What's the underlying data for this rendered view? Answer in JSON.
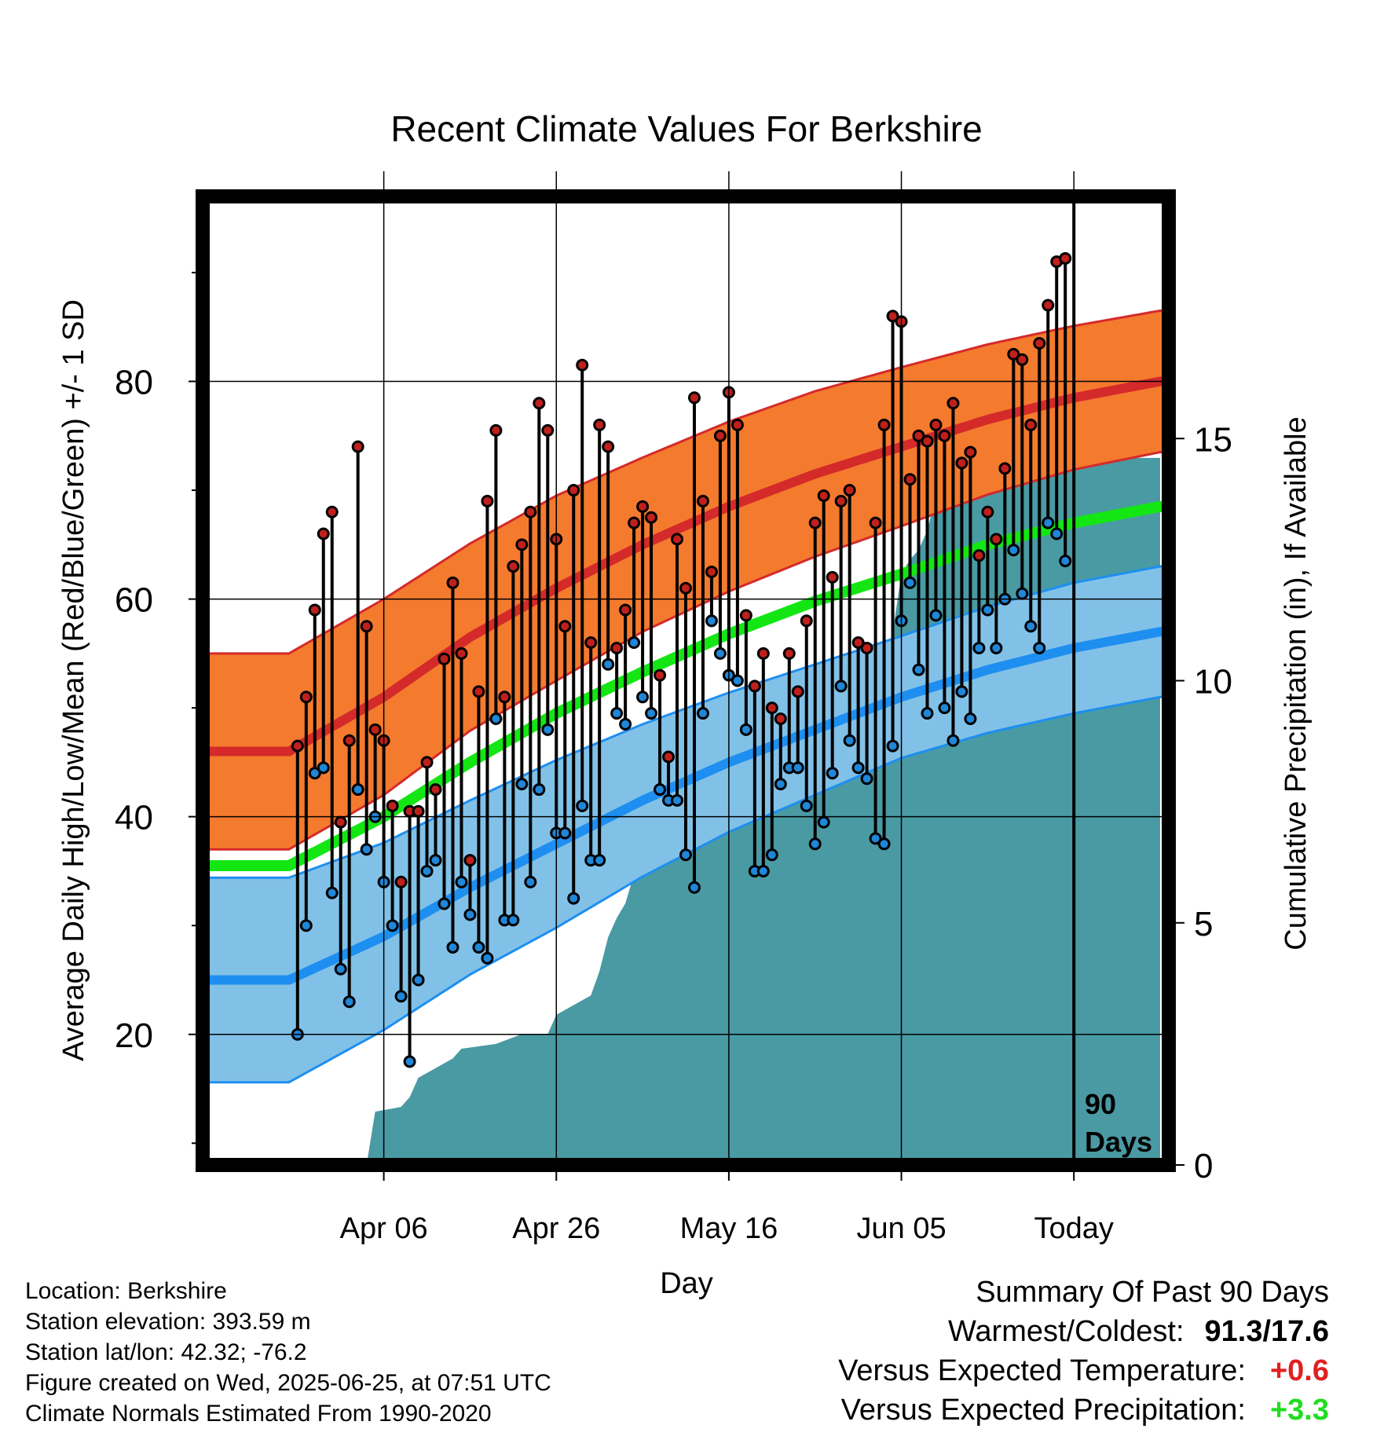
{
  "chart_data": {
    "type": "line",
    "title": "Recent Climate Values For Berkshire",
    "xlabel": "Day",
    "ylabel": "Average Daily High/Low/Mean (Red/Blue/Green) +/- 1 SD",
    "y2label": "Cumulative Precipitation (in), If Available",
    "x_tick_labels": [
      "Apr 06",
      "Apr 26",
      "May 16",
      "Jun 05",
      "Today"
    ],
    "x_tick_days": [
      10,
      30,
      50,
      70,
      90
    ],
    "xlim": [
      -11,
      101
    ],
    "ylim": [
      8,
      97
    ],
    "y_ticks": [
      20,
      40,
      60,
      80
    ],
    "y_minor_ticks": [
      10,
      30,
      50,
      70,
      90
    ],
    "y2lim": [
      0,
      20
    ],
    "y2_ticks": [
      0,
      5,
      10,
      15
    ],
    "grid": true,
    "today_label": [
      "90",
      "Days"
    ],
    "colors": {
      "high": "#d42a2a",
      "high_band": "#f47a2e",
      "low": "#1e8ff0",
      "low_band": "#82c1e7",
      "mean": "#14e614",
      "precip": "#4a9aa4",
      "high_marker": "#c0201c",
      "low_marker": "#1f86d8"
    },
    "normals": {
      "day": [
        -1,
        10,
        20,
        30,
        40,
        50,
        60,
        70,
        80,
        90,
        100
      ],
      "high_mean": [
        46,
        51,
        56.5,
        61,
        65,
        68.5,
        71.5,
        74,
        76.5,
        78.5,
        80
      ],
      "high_sd": [
        9,
        9,
        8.6,
        8.5,
        8,
        7.8,
        7.6,
        7.3,
        6.9,
        6.6,
        6.5
      ],
      "low_mean": [
        25,
        29,
        33.5,
        37.5,
        41.5,
        45,
        48,
        51,
        53.5,
        55.5,
        57
      ],
      "low_sd": [
        9.4,
        8.6,
        8,
        7.7,
        7,
        6.4,
        6,
        5.6,
        5.8,
        6,
        6
      ],
      "mean": [
        35.5,
        40,
        45,
        49.5,
        53.3,
        56.8,
        59.8,
        62.3,
        65,
        67,
        68.5
      ]
    },
    "daily": [
      {
        "day": 0,
        "high": 46.5,
        "low": 20
      },
      {
        "day": 1,
        "high": 51,
        "low": 30
      },
      {
        "day": 2,
        "high": 59,
        "low": 44
      },
      {
        "day": 3,
        "high": 66,
        "low": 44.5
      },
      {
        "day": 4,
        "high": 68,
        "low": 33
      },
      {
        "day": 5,
        "high": 39.5,
        "low": 26
      },
      {
        "day": 6,
        "high": 47,
        "low": 23
      },
      {
        "day": 7,
        "high": 74,
        "low": 42.5
      },
      {
        "day": 8,
        "high": 57.5,
        "low": 37
      },
      {
        "day": 9,
        "high": 48,
        "low": 40
      },
      {
        "day": 10,
        "high": 47,
        "low": 34
      },
      {
        "day": 11,
        "high": 41,
        "low": 30
      },
      {
        "day": 12,
        "high": 34,
        "low": 23.5
      },
      {
        "day": 13,
        "high": 40.5,
        "low": 17.5
      },
      {
        "day": 14,
        "high": 40.5,
        "low": 25
      },
      {
        "day": 15,
        "high": 45,
        "low": 35
      },
      {
        "day": 16,
        "high": 42.5,
        "low": 36
      },
      {
        "day": 17,
        "high": 54.5,
        "low": 32
      },
      {
        "day": 18,
        "high": 61.5,
        "low": 28
      },
      {
        "day": 19,
        "high": 55,
        "low": 34
      },
      {
        "day": 20,
        "high": 36,
        "low": 31
      },
      {
        "day": 21,
        "high": 51.5,
        "low": 28
      },
      {
        "day": 22,
        "high": 69,
        "low": 27
      },
      {
        "day": 23,
        "high": 75.5,
        "low": 49
      },
      {
        "day": 24,
        "high": 51,
        "low": 30.5
      },
      {
        "day": 25,
        "high": 63,
        "low": 30.5
      },
      {
        "day": 26,
        "high": 65,
        "low": 43
      },
      {
        "day": 27,
        "high": 68,
        "low": 34
      },
      {
        "day": 28,
        "high": 78,
        "low": 42.5
      },
      {
        "day": 29,
        "high": 75.5,
        "low": 48
      },
      {
        "day": 30,
        "high": 65.5,
        "low": 38.5
      },
      {
        "day": 31,
        "high": 57.5,
        "low": 38.5
      },
      {
        "day": 32,
        "high": 70,
        "low": 32.5
      },
      {
        "day": 33,
        "high": 81.5,
        "low": 41
      },
      {
        "day": 34,
        "high": 56,
        "low": 36
      },
      {
        "day": 35,
        "high": 76,
        "low": 36
      },
      {
        "day": 36,
        "high": 74,
        "low": 54
      },
      {
        "day": 37,
        "high": 55.5,
        "low": 49.5
      },
      {
        "day": 38,
        "high": 59,
        "low": 48.5
      },
      {
        "day": 39,
        "high": 67,
        "low": 56
      },
      {
        "day": 40,
        "high": 68.5,
        "low": 51
      },
      {
        "day": 41,
        "high": 67.5,
        "low": 49.5
      },
      {
        "day": 42,
        "high": 53,
        "low": 42.5
      },
      {
        "day": 43,
        "high": 45.5,
        "low": 41.5
      },
      {
        "day": 44,
        "high": 65.5,
        "low": 41.5
      },
      {
        "day": 45,
        "high": 61,
        "low": 36.5
      },
      {
        "day": 46,
        "high": 78.5,
        "low": 33.5
      },
      {
        "day": 47,
        "high": 69,
        "low": 49.5
      },
      {
        "day": 48,
        "high": 62.5,
        "low": 58
      },
      {
        "day": 49,
        "high": 75,
        "low": 55
      },
      {
        "day": 50,
        "high": 79,
        "low": 53
      },
      {
        "day": 51,
        "high": 76,
        "low": 52.5
      },
      {
        "day": 52,
        "high": 58.5,
        "low": 48
      },
      {
        "day": 53,
        "high": 52,
        "low": 35
      },
      {
        "day": 54,
        "high": 55,
        "low": 35
      },
      {
        "day": 55,
        "high": 50,
        "low": 36.5
      },
      {
        "day": 56,
        "high": 49,
        "low": 43
      },
      {
        "day": 57,
        "high": 55,
        "low": 44.5
      },
      {
        "day": 58,
        "high": 51.5,
        "low": 44.5
      },
      {
        "day": 59,
        "high": 58,
        "low": 41
      },
      {
        "day": 60,
        "high": 67,
        "low": 37.5
      },
      {
        "day": 61,
        "high": 69.5,
        "low": 39.5
      },
      {
        "day": 62,
        "high": 62,
        "low": 44
      },
      {
        "day": 63,
        "high": 69,
        "low": 52
      },
      {
        "day": 64,
        "high": 70,
        "low": 47
      },
      {
        "day": 65,
        "high": 56,
        "low": 44.5
      },
      {
        "day": 66,
        "high": 55.5,
        "low": 43.5
      },
      {
        "day": 67,
        "high": 67,
        "low": 38
      },
      {
        "day": 68,
        "high": 76,
        "low": 37.5
      },
      {
        "day": 69,
        "high": 86,
        "low": 46.5
      },
      {
        "day": 70,
        "high": 85.5,
        "low": 58
      },
      {
        "day": 71,
        "high": 71,
        "low": 61.5
      },
      {
        "day": 72,
        "high": 75,
        "low": 53.5
      },
      {
        "day": 73,
        "high": 74.5,
        "low": 49.5
      },
      {
        "day": 74,
        "high": 76,
        "low": 58.5
      },
      {
        "day": 75,
        "high": 75,
        "low": 50
      },
      {
        "day": 76,
        "high": 78,
        "low": 47
      },
      {
        "day": 77,
        "high": 72.5,
        "low": 51.5
      },
      {
        "day": 78,
        "high": 73.5,
        "low": 49
      },
      {
        "day": 79,
        "high": 64,
        "low": 55.5
      },
      {
        "day": 80,
        "high": 68,
        "low": 59
      },
      {
        "day": 81,
        "high": 65.5,
        "low": 55.5
      },
      {
        "day": 82,
        "high": 72,
        "low": 60
      },
      {
        "day": 83,
        "high": 82.5,
        "low": 64.5
      },
      {
        "day": 84,
        "high": 82,
        "low": 60.5
      },
      {
        "day": 85,
        "high": 76,
        "low": 57.5
      },
      {
        "day": 86,
        "high": 83.5,
        "low": 55.5
      },
      {
        "day": 87,
        "high": 87,
        "low": 67
      },
      {
        "day": 88,
        "high": 91,
        "low": 66
      },
      {
        "day": 89,
        "high": 91.3,
        "low": 63.5
      }
    ],
    "precip_cumulative": [
      {
        "day": 8,
        "value": 0
      },
      {
        "day": 9,
        "value": 1.1
      },
      {
        "day": 12,
        "value": 1.2
      },
      {
        "day": 13,
        "value": 1.4
      },
      {
        "day": 14,
        "value": 1.8
      },
      {
        "day": 16,
        "value": 2.0
      },
      {
        "day": 18,
        "value": 2.2
      },
      {
        "day": 19,
        "value": 2.4
      },
      {
        "day": 23,
        "value": 2.5
      },
      {
        "day": 26,
        "value": 2.7
      },
      {
        "day": 29,
        "value": 2.7
      },
      {
        "day": 30,
        "value": 3.1
      },
      {
        "day": 32,
        "value": 3.3
      },
      {
        "day": 34,
        "value": 3.5
      },
      {
        "day": 35,
        "value": 4.0
      },
      {
        "day": 36,
        "value": 4.7
      },
      {
        "day": 37,
        "value": 5.1
      },
      {
        "day": 38,
        "value": 5.4
      },
      {
        "day": 39,
        "value": 6.0
      },
      {
        "day": 40,
        "value": 7.2
      },
      {
        "day": 42,
        "value": 7.4
      },
      {
        "day": 43,
        "value": 7.6
      },
      {
        "day": 47,
        "value": 7.7
      },
      {
        "day": 48,
        "value": 7.8
      },
      {
        "day": 49,
        "value": 7.9
      },
      {
        "day": 50,
        "value": 8.1
      },
      {
        "day": 51,
        "value": 8.2
      },
      {
        "day": 53,
        "value": 8.4
      },
      {
        "day": 54,
        "value": 8.9
      },
      {
        "day": 55,
        "value": 9.0
      },
      {
        "day": 56,
        "value": 9.4
      },
      {
        "day": 57,
        "value": 9.7
      },
      {
        "day": 59,
        "value": 9.8
      },
      {
        "day": 61,
        "value": 10.0
      },
      {
        "day": 63,
        "value": 10.1
      },
      {
        "day": 64,
        "value": 10.3
      },
      {
        "day": 68,
        "value": 10.4
      },
      {
        "day": 69,
        "value": 11.0
      },
      {
        "day": 70,
        "value": 12.2
      },
      {
        "day": 71,
        "value": 12.5
      },
      {
        "day": 72,
        "value": 12.7
      },
      {
        "day": 73,
        "value": 13.1
      },
      {
        "day": 74,
        "value": 13.8
      },
      {
        "day": 76,
        "value": 13.9
      },
      {
        "day": 78,
        "value": 13.9
      },
      {
        "day": 80,
        "value": 14.0
      },
      {
        "day": 82,
        "value": 14.1
      },
      {
        "day": 84,
        "value": 14.2
      },
      {
        "day": 86,
        "value": 14.5
      },
      {
        "day": 87,
        "value": 14.6
      },
      {
        "day": 100,
        "value": 14.6
      }
    ]
  },
  "info": {
    "location": "Location: Berkshire",
    "elevation": "Station elevation: 393.59 m",
    "latlon": "Station lat/lon: 42.32; -76.2",
    "created": "Figure created on Wed, 2025-06-25, at 07:51 UTC",
    "normals": "Climate Normals Estimated From 1990-2020"
  },
  "summary": {
    "title": "Summary Of Past 90 Days",
    "warm_cold_label": "Warmest/Coldest:",
    "warm_cold_value": "91.3/17.6",
    "temp_label": "Versus Expected Temperature:",
    "temp_value": "+0.6",
    "temp_color": "#e02020",
    "precip_label": "Versus Expected Precipitation:",
    "precip_value": "+3.3",
    "precip_color": "#22dd22"
  }
}
